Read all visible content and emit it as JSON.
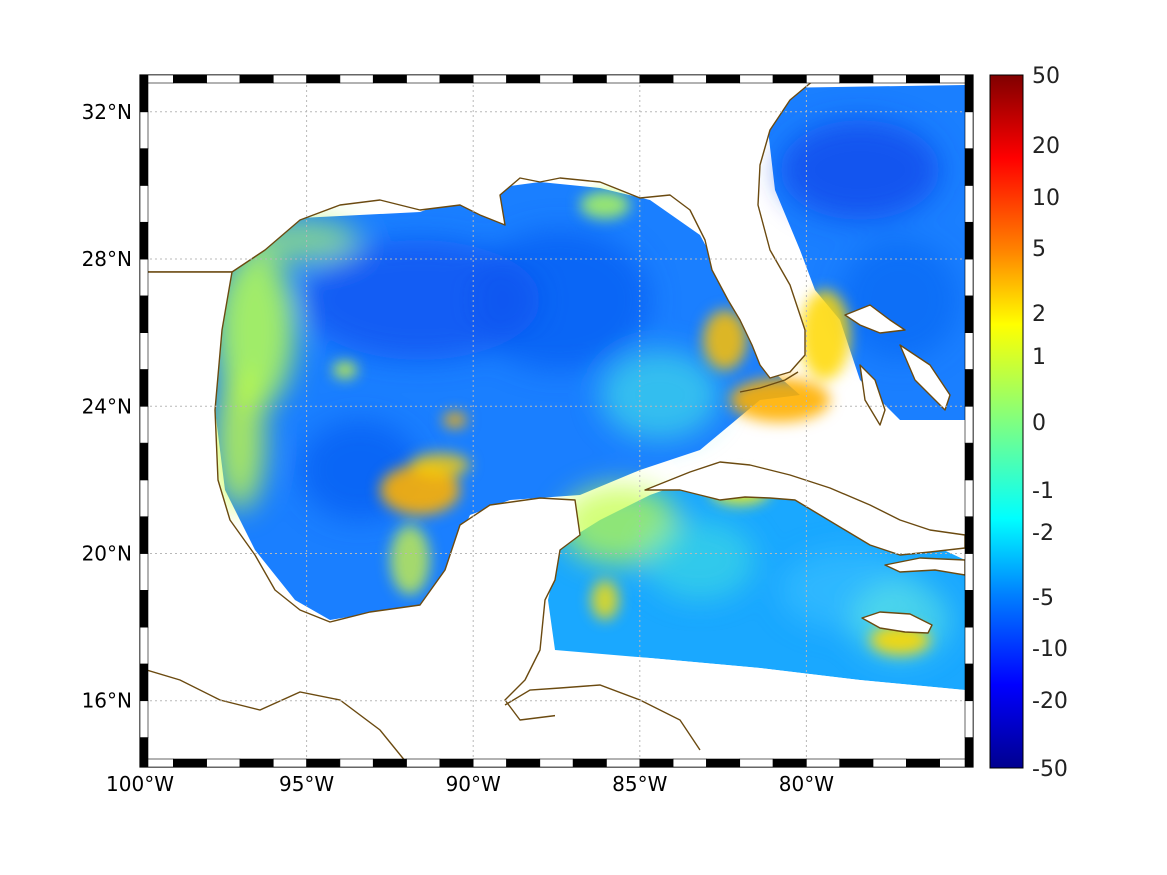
{
  "map": {
    "lon_range": [
      -100,
      -75
    ],
    "lat_range": [
      14.2,
      33
    ],
    "x_ticks": [
      {
        "lon": -100,
        "label": "100°W"
      },
      {
        "lon": -95,
        "label": "95°W"
      },
      {
        "lon": -90,
        "label": "90°W"
      },
      {
        "lon": -85,
        "label": "85°W"
      },
      {
        "lon": -80,
        "label": "80°W"
      }
    ],
    "y_ticks": [
      {
        "lat": 16,
        "label": "16°N"
      },
      {
        "lat": 20,
        "label": "20°N"
      },
      {
        "lat": 24,
        "label": "24°N"
      },
      {
        "lat": 28,
        "label": "28°N"
      },
      {
        "lat": 32,
        "label": "32°N"
      }
    ],
    "grid": true,
    "coast_color": "#6b4a10",
    "land_color": "#ffffff"
  },
  "colorbar": {
    "placement": "right",
    "scale": "symmetric-log",
    "labels": [
      "50",
      "20",
      "10",
      "5",
      "2",
      "1",
      "0",
      "-1",
      "-2",
      "-5",
      "-10",
      "-20",
      "-50"
    ],
    "colormap": [
      "#00008f",
      "#0000ff",
      "#0080ff",
      "#00ffff",
      "#80ff80",
      "#ffff00",
      "#ff8000",
      "#ff0000",
      "#800000"
    ]
  }
}
